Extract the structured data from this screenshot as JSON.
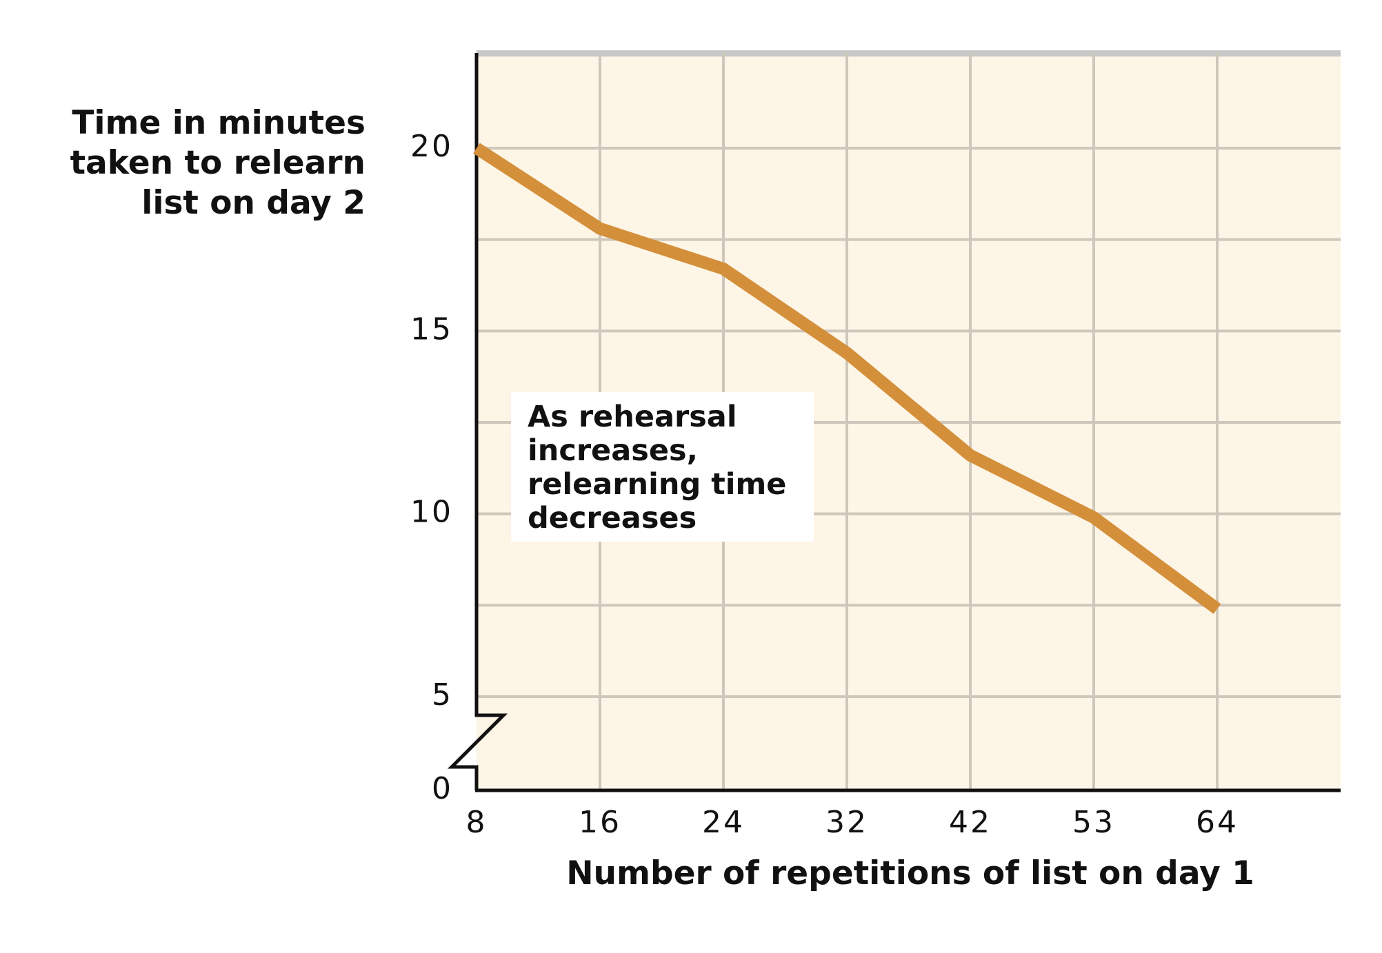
{
  "chart_data": {
    "type": "line",
    "ylabel": "Time in minutes taken to relearn list on day 2",
    "xlabel": "Number of repetitions of list on day 1",
    "annotation": "As rehearsal increases, relearning time decreases",
    "categories": [
      "8",
      "16",
      "24",
      "32",
      "42",
      "53",
      "64"
    ],
    "series": [
      {
        "name": "Relearning time",
        "color": "#d48f3a",
        "values": [
          20,
          17.8,
          16.7,
          14.4,
          11.6,
          9.9,
          7.4
        ]
      }
    ],
    "ylim": [
      0,
      22.6
    ],
    "yticks": [
      0,
      5,
      10,
      15,
      20
    ],
    "y_break": [
      0,
      5
    ],
    "ygrid": [
      5,
      7.5,
      10,
      12.5,
      15,
      17.5,
      20
    ],
    "grid": true
  }
}
